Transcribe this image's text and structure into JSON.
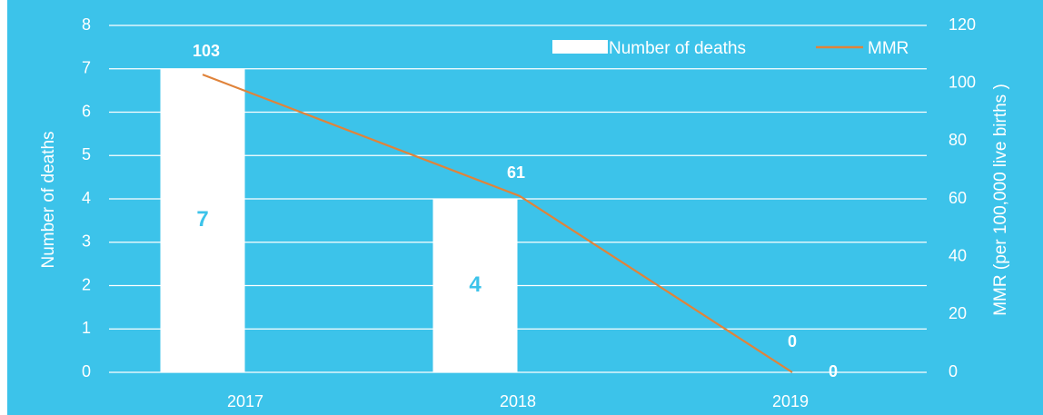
{
  "chart_data": {
    "type": "bar",
    "categories": [
      "2017",
      "2018",
      "2019"
    ],
    "series": [
      {
        "name": "Number of deaths",
        "kind": "bar",
        "axis": "left",
        "values": [
          7,
          4,
          0
        ]
      },
      {
        "name": "MMR",
        "kind": "line",
        "axis": "right",
        "values": [
          103,
          61,
          0
        ]
      }
    ],
    "bar_labels": [
      "7",
      "4",
      ""
    ],
    "line_labels": [
      "103",
      "61",
      "0"
    ],
    "bar_zero_label": "0",
    "ylabel_left": "Number of deaths",
    "ylabel_right": "MMR (per 100,000 live births )",
    "ylim_left": [
      0,
      8
    ],
    "ylim_right": [
      0,
      120
    ],
    "yticks_left": [
      "0",
      "1",
      "2",
      "3",
      "4",
      "5",
      "6",
      "7",
      "8"
    ],
    "yticks_right": [
      "0",
      "20",
      "40",
      "60",
      "80",
      "100",
      "120"
    ],
    "grid": true,
    "legend": "top-right",
    "colors": {
      "background": "#3cc3ea",
      "bar": "#ffffff",
      "line": "#e0833a",
      "bar_label": "#3cc3ea",
      "grid": "#ffffff",
      "text": "#ffffff"
    }
  }
}
